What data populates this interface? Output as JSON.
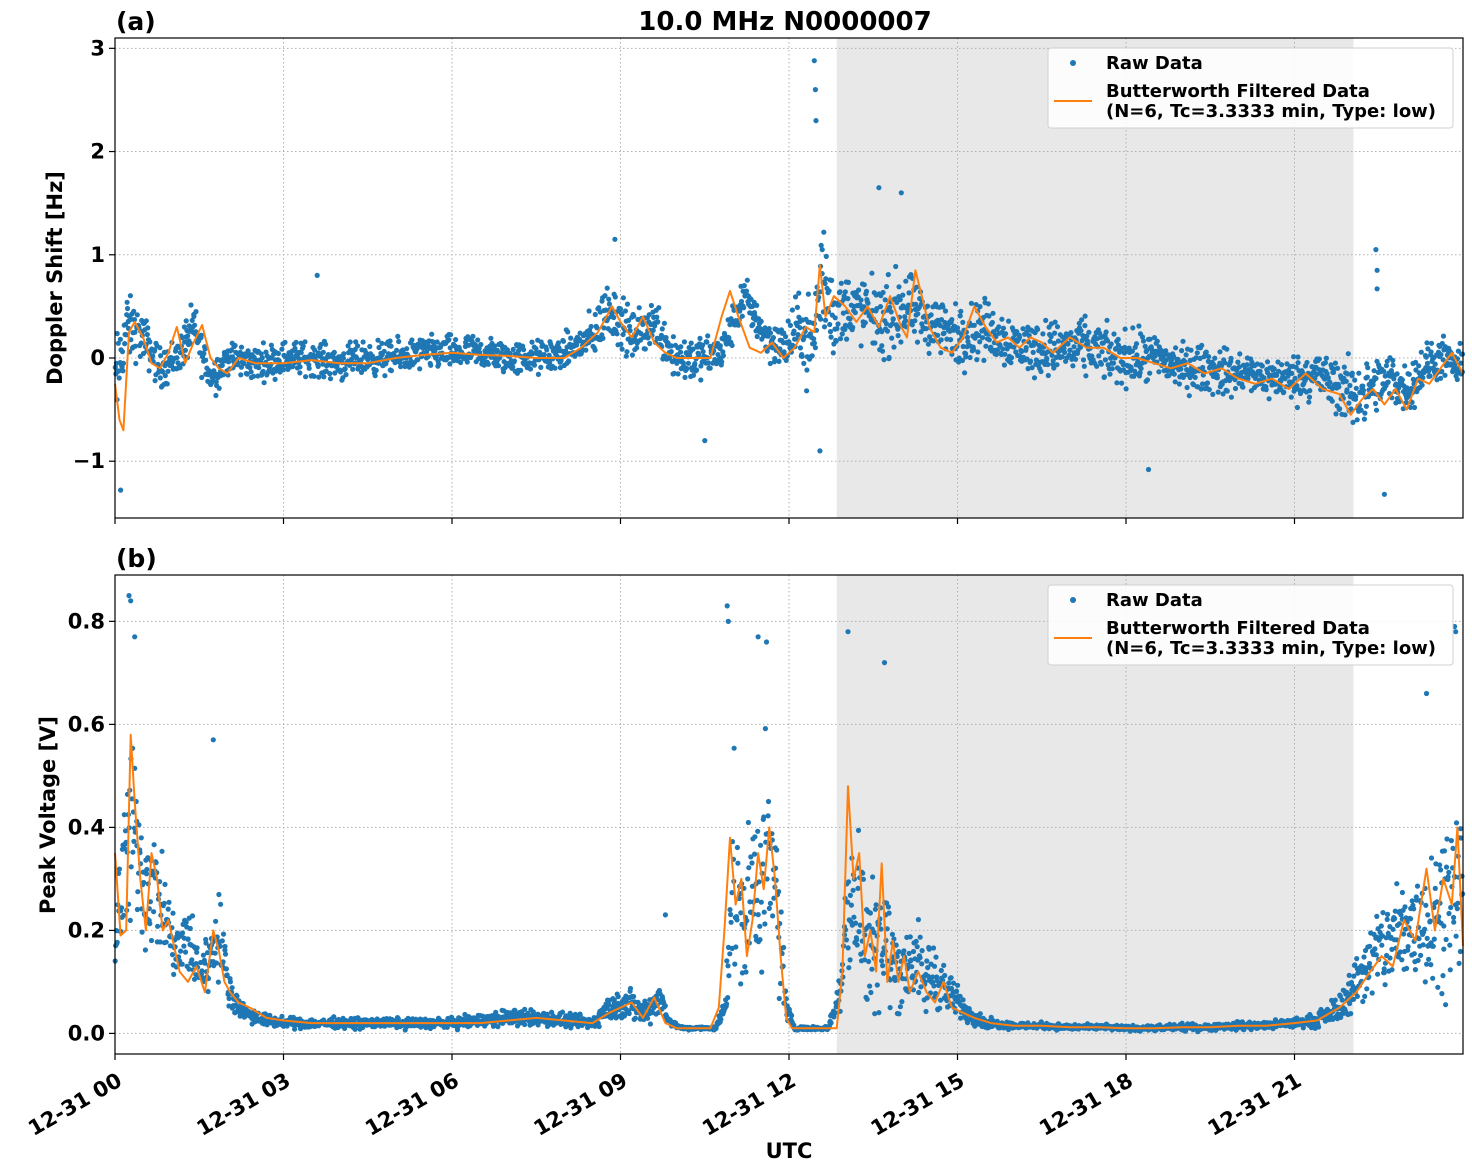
{
  "title": "10.0 MHz N0000007",
  "colors": {
    "raw": "#1f77b4",
    "filtered": "#ff7f0e",
    "night_shade": "#e8e8e8",
    "grid": "#b0b0b0"
  },
  "x_axis": {
    "label": "UTC",
    "tick_labels": [
      "12-31 00",
      "12-31 03",
      "12-31 06",
      "12-31 09",
      "12-31 12",
      "12-31 15",
      "12-31 18",
      "12-31 21"
    ],
    "tick_hours": [
      0,
      3,
      6,
      9,
      12,
      15,
      18,
      21
    ],
    "range_hours": [
      0,
      24
    ]
  },
  "chart_data": [
    {
      "type": "scatter",
      "panel_label": "(a)",
      "ylabel": "Doppler Shift [Hz]",
      "ylim": [
        -1.55,
        3.1
      ],
      "yticks": [
        -1,
        0,
        1,
        2,
        3
      ],
      "ytick_labels": [
        "−1",
        "0",
        "1",
        "2",
        "3"
      ],
      "grid": true,
      "shaded_x_hours": [
        12.85,
        22.05
      ],
      "legend": {
        "placement": "top-right",
        "entries": [
          "Raw Data",
          "Butterworth Filtered Data",
          "(N=6, Tc=3.3333 min, Type: low)"
        ]
      },
      "series": [
        {
          "name": "Raw Data",
          "kind": "points",
          "x_hours": [
            0.0,
            0.2,
            0.5,
            0.8,
            1.1,
            1.4,
            1.7,
            2.0,
            2.5,
            3.0,
            3.5,
            4.0,
            4.5,
            5.0,
            5.5,
            6.0,
            6.5,
            7.0,
            7.5,
            8.0,
            8.5,
            8.8,
            9.2,
            9.6,
            10.0,
            10.5,
            10.8,
            11.2,
            11.6,
            11.9,
            12.2,
            12.4,
            12.6,
            12.8,
            13.1,
            13.4,
            13.7,
            14.0,
            14.3,
            14.7,
            15.0,
            15.4,
            15.8,
            16.2,
            16.6,
            17.0,
            17.4,
            17.8,
            18.2,
            18.6,
            19.0,
            19.4,
            19.8,
            20.2,
            20.6,
            21.0,
            21.4,
            21.8,
            22.1,
            22.4,
            22.7,
            23.0,
            23.3,
            23.6,
            23.9
          ],
          "y_center": [
            -0.3,
            0.3,
            0.2,
            -0.1,
            0.0,
            0.3,
            -0.2,
            0.0,
            -0.05,
            0.0,
            0.0,
            -0.05,
            0.0,
            0.0,
            0.05,
            0.05,
            0.05,
            0.0,
            0.0,
            0.05,
            0.2,
            0.5,
            0.2,
            0.35,
            0.0,
            0.0,
            0.05,
            0.6,
            0.2,
            0.1,
            0.3,
            0.1,
            0.8,
            0.4,
            0.5,
            0.45,
            0.35,
            0.5,
            0.4,
            0.3,
            0.2,
            0.3,
            0.2,
            0.1,
            0.1,
            0.1,
            0.1,
            0.0,
            0.0,
            0.0,
            -0.1,
            -0.1,
            -0.15,
            -0.15,
            -0.2,
            -0.2,
            -0.15,
            -0.3,
            -0.35,
            -0.3,
            -0.2,
            -0.3,
            -0.1,
            0.0,
            -0.1
          ],
          "y_spread": [
            0.7,
            0.5,
            0.35,
            0.3,
            0.3,
            0.35,
            0.3,
            0.25,
            0.25,
            0.25,
            0.25,
            0.25,
            0.25,
            0.25,
            0.25,
            0.25,
            0.25,
            0.25,
            0.25,
            0.25,
            0.35,
            0.45,
            0.35,
            0.35,
            0.4,
            0.3,
            0.3,
            0.3,
            0.3,
            0.35,
            0.5,
            0.7,
            1.0,
            0.6,
            0.5,
            0.5,
            0.55,
            0.6,
            0.45,
            0.45,
            0.45,
            0.45,
            0.4,
            0.4,
            0.4,
            0.4,
            0.4,
            0.4,
            0.4,
            0.35,
            0.35,
            0.35,
            0.35,
            0.3,
            0.3,
            0.35,
            0.35,
            0.45,
            0.5,
            0.4,
            0.4,
            0.35,
            0.35,
            0.3,
            0.3
          ],
          "outliers": [
            [
              12.45,
              2.88
            ],
            [
              12.47,
              2.6
            ],
            [
              12.48,
              2.3
            ],
            [
              13.6,
              1.65
            ],
            [
              14.0,
              1.6
            ],
            [
              22.45,
              1.05
            ],
            [
              22.47,
              0.85
            ],
            [
              22.47,
              0.67
            ],
            [
              0.1,
              -1.28
            ],
            [
              22.6,
              -1.32
            ],
            [
              18.4,
              -1.08
            ],
            [
              3.6,
              0.8
            ],
            [
              8.9,
              1.15
            ],
            [
              12.55,
              -0.9
            ],
            [
              10.5,
              -0.8
            ]
          ]
        },
        {
          "name": "Butterworth Filtered Data",
          "kind": "line",
          "x_hours": [
            0.0,
            0.08,
            0.15,
            0.25,
            0.35,
            0.5,
            0.65,
            0.8,
            0.95,
            1.1,
            1.25,
            1.4,
            1.55,
            1.7,
            1.85,
            2.0,
            2.2,
            2.5,
            3.0,
            3.5,
            4.0,
            4.5,
            5.0,
            5.5,
            6.0,
            6.5,
            7.0,
            7.5,
            8.0,
            8.3,
            8.6,
            8.85,
            9.0,
            9.2,
            9.4,
            9.6,
            9.8,
            10.0,
            10.3,
            10.6,
            10.8,
            10.95,
            11.1,
            11.3,
            11.5,
            11.7,
            11.9,
            12.1,
            12.3,
            12.45,
            12.55,
            12.65,
            12.8,
            13.0,
            13.2,
            13.4,
            13.6,
            13.8,
            14.0,
            14.1,
            14.25,
            14.5,
            14.7,
            14.9,
            15.1,
            15.3,
            15.5,
            15.7,
            15.9,
            16.1,
            16.3,
            16.5,
            16.7,
            17.0,
            17.3,
            17.6,
            17.9,
            18.2,
            18.5,
            18.8,
            19.1,
            19.4,
            19.7,
            20.0,
            20.3,
            20.6,
            20.9,
            21.2,
            21.5,
            21.8,
            22.0,
            22.2,
            22.4,
            22.6,
            22.8,
            23.0,
            23.2,
            23.4,
            23.6,
            23.8,
            24.0
          ],
          "y": [
            -0.25,
            -0.6,
            -0.7,
            0.25,
            0.35,
            0.2,
            -0.05,
            -0.1,
            0.05,
            0.3,
            -0.05,
            0.15,
            0.32,
            0.0,
            -0.1,
            -0.15,
            0.0,
            -0.05,
            -0.05,
            -0.02,
            -0.05,
            -0.05,
            0.0,
            0.03,
            0.05,
            0.03,
            0.02,
            0.0,
            0.0,
            0.1,
            0.25,
            0.5,
            0.35,
            0.2,
            0.4,
            0.15,
            0.05,
            0.0,
            0.0,
            0.0,
            0.4,
            0.65,
            0.4,
            0.1,
            0.05,
            0.15,
            0.0,
            0.1,
            0.3,
            0.25,
            0.9,
            0.4,
            0.6,
            0.5,
            0.35,
            0.5,
            0.3,
            0.6,
            0.3,
            0.2,
            0.85,
            0.3,
            0.1,
            0.05,
            0.2,
            0.5,
            0.3,
            0.15,
            0.2,
            0.1,
            0.2,
            0.15,
            0.05,
            0.2,
            0.1,
            0.1,
            0.0,
            0.0,
            -0.05,
            -0.1,
            -0.05,
            -0.15,
            -0.1,
            -0.2,
            -0.25,
            -0.2,
            -0.3,
            -0.15,
            -0.3,
            -0.35,
            -0.55,
            -0.4,
            -0.3,
            -0.45,
            -0.3,
            -0.5,
            -0.2,
            -0.25,
            -0.1,
            0.05,
            -0.15
          ]
        }
      ]
    },
    {
      "type": "scatter",
      "panel_label": "(b)",
      "ylabel": "Peak Voltage [V]",
      "ylim": [
        -0.04,
        0.89
      ],
      "yticks": [
        0.0,
        0.2,
        0.4,
        0.6,
        0.8
      ],
      "ytick_labels": [
        "0.0",
        "0.2",
        "0.4",
        "0.6",
        "0.8"
      ],
      "grid": true,
      "shaded_x_hours": [
        12.85,
        22.05
      ],
      "legend": {
        "placement": "top-right",
        "entries": [
          "Raw Data",
          "Butterworth Filtered Data",
          "(N=6, Tc=3.3333 min, Type: low)"
        ]
      },
      "series": [
        {
          "name": "Raw Data",
          "kind": "points",
          "x_hours": [
            0.0,
            0.15,
            0.3,
            0.5,
            0.7,
            0.9,
            1.1,
            1.3,
            1.5,
            1.7,
            1.85,
            2.0,
            2.2,
            2.5,
            3.0,
            3.5,
            4.0,
            4.5,
            5.0,
            5.5,
            6.0,
            6.5,
            7.0,
            7.5,
            8.0,
            8.5,
            8.8,
            9.1,
            9.4,
            9.7,
            9.9,
            10.1,
            10.4,
            10.7,
            10.85,
            11.0,
            11.2,
            11.4,
            11.6,
            11.8,
            11.95,
            12.1,
            12.4,
            12.7,
            12.95,
            13.05,
            13.2,
            13.4,
            13.6,
            13.8,
            14.0,
            14.2,
            14.4,
            14.6,
            14.8,
            15.0,
            15.2,
            15.5,
            16.0,
            16.5,
            17.0,
            17.5,
            18.0,
            18.5,
            19.0,
            19.5,
            20.0,
            20.5,
            21.0,
            21.4,
            21.8,
            22.1,
            22.4,
            22.7,
            23.0,
            23.3,
            23.6,
            23.9
          ],
          "y_center": [
            0.22,
            0.3,
            0.4,
            0.3,
            0.28,
            0.22,
            0.15,
            0.18,
            0.12,
            0.15,
            0.2,
            0.1,
            0.05,
            0.03,
            0.02,
            0.02,
            0.02,
            0.02,
            0.02,
            0.02,
            0.02,
            0.025,
            0.03,
            0.03,
            0.025,
            0.02,
            0.05,
            0.06,
            0.04,
            0.07,
            0.02,
            0.01,
            0.01,
            0.01,
            0.05,
            0.3,
            0.2,
            0.3,
            0.32,
            0.25,
            0.05,
            0.01,
            0.01,
            0.01,
            0.1,
            0.3,
            0.25,
            0.18,
            0.2,
            0.15,
            0.12,
            0.15,
            0.1,
            0.12,
            0.08,
            0.06,
            0.04,
            0.02,
            0.015,
            0.015,
            0.012,
            0.012,
            0.01,
            0.01,
            0.012,
            0.012,
            0.015,
            0.015,
            0.02,
            0.025,
            0.05,
            0.1,
            0.15,
            0.18,
            0.2,
            0.22,
            0.25,
            0.28
          ],
          "y_spread": [
            0.15,
            0.25,
            0.3,
            0.2,
            0.18,
            0.12,
            0.1,
            0.12,
            0.07,
            0.1,
            0.12,
            0.06,
            0.03,
            0.02,
            0.015,
            0.015,
            0.015,
            0.015,
            0.015,
            0.015,
            0.015,
            0.02,
            0.025,
            0.025,
            0.02,
            0.02,
            0.04,
            0.05,
            0.04,
            0.05,
            0.01,
            0.005,
            0.005,
            0.005,
            0.04,
            0.3,
            0.2,
            0.28,
            0.3,
            0.25,
            0.04,
            0.005,
            0.005,
            0.005,
            0.08,
            0.3,
            0.25,
            0.2,
            0.22,
            0.15,
            0.12,
            0.15,
            0.1,
            0.12,
            0.06,
            0.05,
            0.03,
            0.015,
            0.01,
            0.01,
            0.008,
            0.008,
            0.008,
            0.008,
            0.01,
            0.01,
            0.012,
            0.012,
            0.015,
            0.02,
            0.04,
            0.08,
            0.12,
            0.15,
            0.18,
            0.2,
            0.22,
            0.25
          ],
          "outliers": [
            [
              0.25,
              0.85
            ],
            [
              0.28,
              0.84
            ],
            [
              0.35,
              0.77
            ],
            [
              1.75,
              0.57
            ],
            [
              10.9,
              0.83
            ],
            [
              10.92,
              0.8
            ],
            [
              11.45,
              0.77
            ],
            [
              11.6,
              0.76
            ],
            [
              13.05,
              0.78
            ],
            [
              13.7,
              0.72
            ],
            [
              9.8,
              0.23
            ],
            [
              23.35,
              0.66
            ],
            [
              23.85,
              0.79
            ],
            [
              23.87,
              0.78
            ]
          ]
        },
        {
          "name": "Butterworth Filtered Data",
          "kind": "line",
          "x_hours": [
            0.0,
            0.1,
            0.2,
            0.28,
            0.35,
            0.45,
            0.55,
            0.65,
            0.75,
            0.85,
            0.95,
            1.05,
            1.15,
            1.3,
            1.45,
            1.6,
            1.75,
            1.85,
            1.95,
            2.05,
            2.2,
            2.4,
            2.7,
            3.0,
            3.5,
            4.0,
            4.5,
            5.0,
            5.5,
            6.0,
            6.5,
            7.0,
            7.5,
            8.0,
            8.5,
            8.8,
            9.0,
            9.2,
            9.4,
            9.6,
            9.8,
            10.0,
            10.3,
            10.6,
            10.75,
            10.85,
            10.95,
            11.05,
            11.15,
            11.25,
            11.35,
            11.45,
            11.55,
            11.65,
            11.75,
            11.85,
            11.95,
            12.05,
            12.3,
            12.6,
            12.85,
            12.95,
            13.05,
            13.15,
            13.25,
            13.35,
            13.45,
            13.55,
            13.65,
            13.75,
            13.85,
            13.95,
            14.05,
            14.15,
            14.3,
            14.45,
            14.6,
            14.75,
            14.9,
            15.1,
            15.3,
            15.6,
            16.0,
            16.5,
            17.0,
            17.5,
            18.0,
            18.5,
            19.0,
            19.5,
            20.0,
            20.5,
            21.0,
            21.4,
            21.8,
            22.1,
            22.35,
            22.55,
            22.75,
            22.95,
            23.15,
            23.35,
            23.5,
            23.65,
            23.8,
            23.9,
            24.0
          ],
          "y": [
            0.35,
            0.19,
            0.2,
            0.58,
            0.45,
            0.3,
            0.2,
            0.35,
            0.3,
            0.2,
            0.22,
            0.17,
            0.12,
            0.1,
            0.13,
            0.08,
            0.2,
            0.16,
            0.1,
            0.08,
            0.06,
            0.05,
            0.03,
            0.025,
            0.02,
            0.02,
            0.02,
            0.02,
            0.02,
            0.02,
            0.02,
            0.025,
            0.03,
            0.025,
            0.02,
            0.04,
            0.05,
            0.06,
            0.03,
            0.07,
            0.02,
            0.01,
            0.01,
            0.01,
            0.05,
            0.2,
            0.38,
            0.25,
            0.3,
            0.15,
            0.22,
            0.35,
            0.28,
            0.4,
            0.3,
            0.15,
            0.03,
            0.01,
            0.01,
            0.01,
            0.01,
            0.12,
            0.48,
            0.3,
            0.35,
            0.15,
            0.2,
            0.12,
            0.33,
            0.1,
            0.18,
            0.1,
            0.15,
            0.08,
            0.12,
            0.08,
            0.06,
            0.1,
            0.05,
            0.04,
            0.03,
            0.02,
            0.015,
            0.015,
            0.012,
            0.012,
            0.01,
            0.01,
            0.012,
            0.012,
            0.015,
            0.015,
            0.02,
            0.025,
            0.05,
            0.08,
            0.12,
            0.15,
            0.13,
            0.22,
            0.18,
            0.32,
            0.2,
            0.3,
            0.25,
            0.4,
            0.17
          ]
        }
      ]
    }
  ]
}
